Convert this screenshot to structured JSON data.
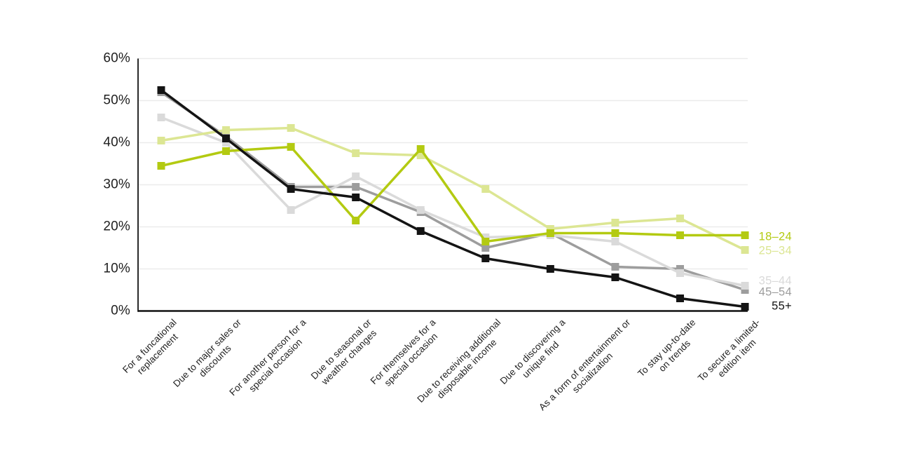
{
  "chart_data": {
    "type": "line",
    "title": "",
    "xlabel": "",
    "ylabel": "",
    "y_axis": {
      "min": 0,
      "max": 60,
      "tick_step": 10,
      "tick_labels": [
        "0%",
        "10%",
        "20%",
        "30%",
        "40%",
        "50%",
        "60%"
      ]
    },
    "grid": "horizontal",
    "legend_position": "right-of-line-ends",
    "categories": [
      "For a funcational\nreplacement",
      "Due to major sales or\ndiscounts",
      "For another person for a\nspecial occasion",
      "Due to seasonal or\nweather changes",
      "For themselves for a\nspecial occasion",
      "Due to receiving additional\ndisposable income",
      "Due to discovering a\nunique find",
      "As a form of entertainment or\nsocialization",
      "To stay up-to-date\non trends",
      "To secure a limited-\nedition item"
    ],
    "series": [
      {
        "name": "18–24",
        "color": "#b3ca11",
        "values": [
          34.5,
          38,
          39,
          21.5,
          38.5,
          16.5,
          18.5,
          18.5,
          18,
          18
        ]
      },
      {
        "name": "25–34",
        "color": "#dce693",
        "values": [
          40.5,
          43,
          43.5,
          37.5,
          37,
          29,
          19.5,
          21,
          22,
          14.5
        ]
      },
      {
        "name": "35–44",
        "color": "#dadada",
        "values": [
          46,
          40,
          24,
          32,
          24,
          17.5,
          18,
          16.5,
          9,
          6
        ]
      },
      {
        "name": "45–54",
        "color": "#9d9d9d",
        "values": [
          52,
          41.5,
          29.5,
          29.5,
          23.5,
          15,
          18.5,
          10.5,
          10,
          5
        ]
      },
      {
        "name": "55+",
        "color": "#141414",
        "values": [
          52.5,
          41,
          29,
          27,
          19,
          12.5,
          10,
          8,
          3,
          1
        ]
      }
    ],
    "colors": {
      "gridline": "#ebebeb",
      "y_axis_line": "#2a2a2a",
      "x_axis_line": "#111111",
      "background": "#ffffff"
    }
  }
}
